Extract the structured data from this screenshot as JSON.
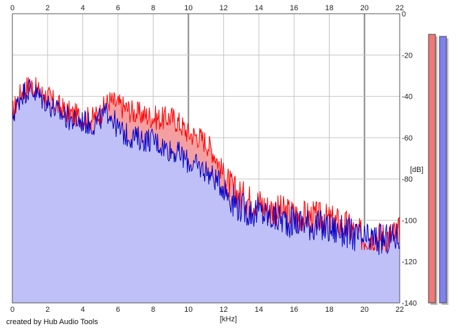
{
  "credit": "created by Hub Audio Tools",
  "chart_data": {
    "type": "area",
    "xlabel": "[kHz]",
    "ylabel": "[dB]",
    "xlim": [
      0,
      22
    ],
    "ylim": [
      -140,
      0
    ],
    "x_ticks": [
      "0",
      "2",
      "4",
      "6",
      "8",
      "10",
      "12",
      "14",
      "16",
      "18",
      "20",
      "22"
    ],
    "y_ticks": [
      "0",
      "-20",
      "-40",
      "-60",
      "-80",
      "-100",
      "-120",
      "-140"
    ],
    "grid": true,
    "x_unit": "kHz",
    "y_unit": "dB",
    "series": [
      {
        "channel": "red",
        "color": "#ff0000",
        "fill": "#f4a0a0",
        "x": [
          0,
          0.5,
          1,
          1.5,
          2,
          2.5,
          3,
          3.5,
          4,
          4.5,
          5,
          5.5,
          6,
          6.5,
          7,
          7.5,
          8,
          8.5,
          9,
          9.5,
          10,
          10.5,
          11,
          11.5,
          12,
          12.5,
          13,
          13.5,
          14,
          14.5,
          15,
          15.5,
          16,
          16.5,
          17,
          17.5,
          18,
          18.5,
          19,
          19.5,
          20,
          20.5,
          21,
          21.5,
          22
        ],
        "values": [
          -48,
          -38,
          -34,
          -38,
          -40,
          -44,
          -47,
          -49,
          -50,
          -51,
          -48,
          -42,
          -44,
          -46,
          -48,
          -49,
          -50,
          -51,
          -50,
          -53,
          -58,
          -59,
          -62,
          -68,
          -78,
          -85,
          -88,
          -90,
          -91,
          -94,
          -95,
          -96,
          -97,
          -98,
          -98,
          -99,
          -100,
          -101,
          -103,
          -106,
          -108,
          -107,
          -108,
          -107,
          -106
        ]
      },
      {
        "channel": "blue",
        "color": "#0000cc",
        "fill": "#c0c0f8",
        "x": [
          0,
          0.5,
          1,
          1.5,
          2,
          2.5,
          3,
          3.5,
          4,
          4.5,
          5,
          5.5,
          6,
          6.5,
          7,
          7.5,
          8,
          8.5,
          9,
          9.5,
          10,
          10.5,
          11,
          11.5,
          12,
          12.5,
          13,
          13.5,
          14,
          14.5,
          15,
          15.5,
          16,
          16.5,
          17,
          17.5,
          18,
          18.5,
          19,
          19.5,
          20,
          20.5,
          21,
          21.5,
          22
        ],
        "values": [
          -50,
          -39,
          -36,
          -40,
          -43,
          -47,
          -50,
          -52,
          -52,
          -54,
          -51,
          -47,
          -56,
          -59,
          -60,
          -61,
          -61,
          -64,
          -66,
          -68,
          -72,
          -74,
          -76,
          -80,
          -84,
          -90,
          -94,
          -96,
          -96,
          -98,
          -99,
          -100,
          -101,
          -101,
          -102,
          -103,
          -104,
          -105,
          -106,
          -108,
          -110,
          -109,
          -110,
          -109,
          -108
        ]
      }
    ],
    "meters": [
      {
        "channel": "red",
        "color": "#f07878",
        "level_db": -10
      },
      {
        "channel": "blue",
        "color": "#8080f0",
        "level_db": -11
      }
    ]
  }
}
